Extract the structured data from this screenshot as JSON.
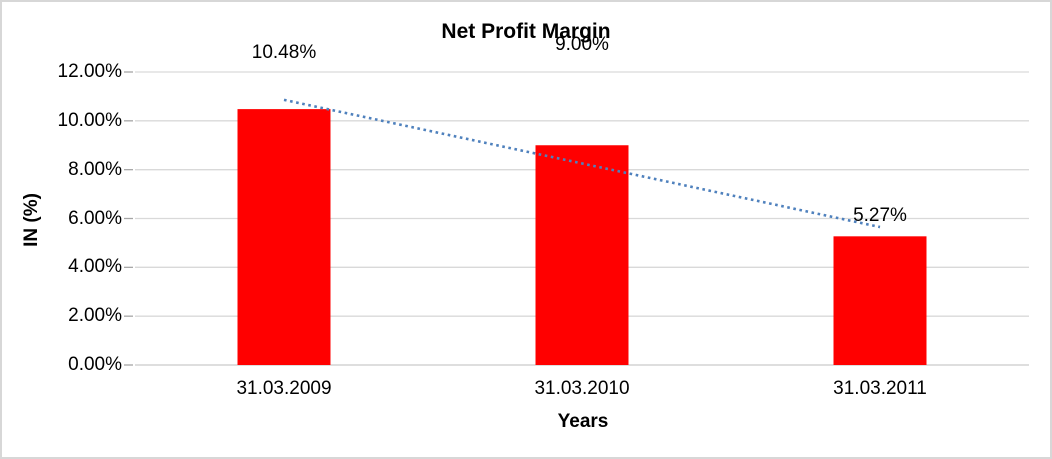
{
  "chart_data": {
    "type": "bar",
    "title": "Net Profit Margin",
    "xlabel": "Years",
    "ylabel": "IN (%)",
    "categories": [
      "31.03.2009",
      "31.03.2010",
      "31.03.2011"
    ],
    "series": [
      {
        "name": "Net Profit Margin",
        "color": "#FF0000",
        "values": [
          10.48,
          9.0,
          5.27
        ]
      }
    ],
    "data_labels": [
      "10.48%",
      "9.00%",
      "5.27%"
    ],
    "y_ticks": [
      "0.00%",
      "2.00%",
      "4.00%",
      "6.00%",
      "8.00%",
      "10.00%",
      "12.00%"
    ],
    "ylim": [
      0,
      12
    ],
    "y_step": 2,
    "grid": true,
    "legend": "none",
    "trendline": {
      "type": "linear",
      "style": "dotted",
      "color": "#4F81BD",
      "endpoint_values": [
        10.86,
        5.65
      ]
    },
    "colors": {
      "bar": "#FF0000",
      "trendline": "#4F81BD",
      "gridline": "#D9D9D9",
      "axis_line": "#C9C9C9",
      "tick_mark": "#A6A6A6",
      "frame_border": "#D7D7D7"
    }
  }
}
